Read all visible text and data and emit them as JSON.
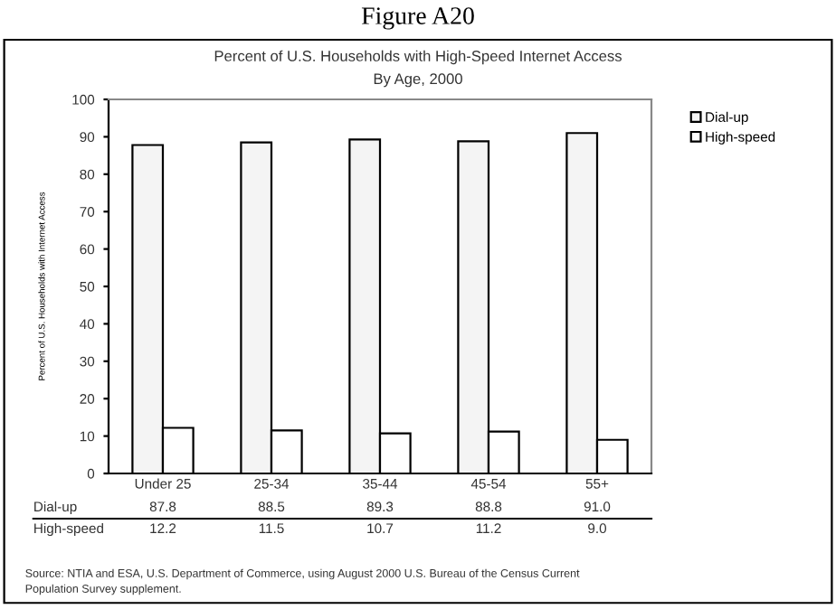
{
  "chart_data": {
    "type": "bar",
    "title": "Figure A20",
    "subtitle": "Percent of U.S. Households with High-Speed Internet Access\nBy Age, 2000",
    "ylabel": "Percent of U.S. Households with Internet Access",
    "categories": [
      "Under 25",
      "25-34",
      "35-44",
      "45-54",
      "55+"
    ],
    "series": [
      {
        "name": "Dial-up",
        "color": "#f4f4f4",
        "values": [
          87.8,
          88.5,
          89.3,
          88.8,
          91.0
        ],
        "value_labels": [
          "87.8",
          "88.5",
          "89.3",
          "88.8",
          "91.0"
        ]
      },
      {
        "name": "High-speed",
        "color": "#ffffff",
        "values": [
          12.2,
          11.5,
          10.7,
          11.2,
          9.0
        ],
        "value_labels": [
          "12.2",
          "11.5",
          "10.7",
          "11.2",
          "9.0"
        ]
      }
    ],
    "ylim": [
      0,
      100
    ],
    "yticks": [
      0,
      10,
      20,
      30,
      40,
      50,
      60,
      70,
      80,
      90,
      100
    ],
    "grid": false,
    "legend": "top right",
    "annotations": [
      "Source: NTIA and ESA, U.S. Department of Commerce, using August 2000 U.S. Bureau of the Census Current\nPopulation Survey supplement."
    ]
  }
}
